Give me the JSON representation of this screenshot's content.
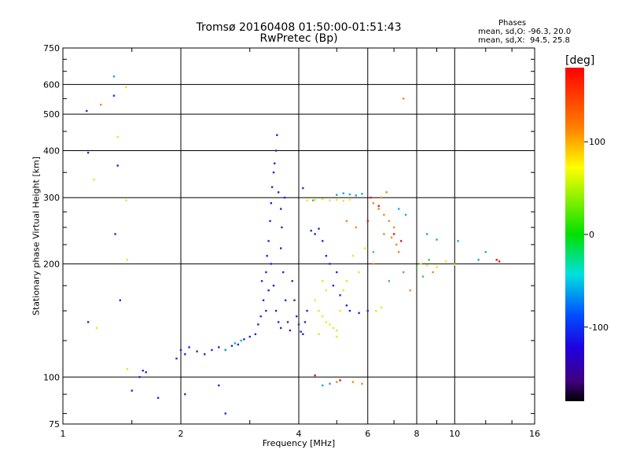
{
  "chart_data": {
    "type": "scatter",
    "title": "Tromsø 20160408 01:50:00-01:51:43",
    "subtitle": "RwPretec (Bp)",
    "xlabel": "Frequency [MHz]",
    "ylabel": "Stationary phase Virtual Height [km]",
    "x_scale": "log",
    "y_scale": "log",
    "xlim": [
      1,
      16
    ],
    "ylim": [
      75,
      750
    ],
    "x_ticks": [
      1,
      2,
      4,
      6,
      8,
      10,
      16
    ],
    "y_ticks": [
      75,
      100,
      200,
      300,
      400,
      500,
      600,
      750
    ],
    "grid": true,
    "legend_title": "Phases",
    "legend_lines": [
      "mean, sd,O: -96.3, 20.0",
      "mean, sd,X:  94.5, 25.8"
    ],
    "colorbar": {
      "label": "[deg]",
      "ticks": [
        100,
        0,
        -100
      ],
      "range": [
        -180,
        180
      ]
    },
    "series": [
      {
        "mode": "O",
        "color": "#1e2bd6",
        "points": [
          [
            1.15,
            510
          ],
          [
            1.16,
            395
          ],
          [
            1.16,
            140
          ],
          [
            1.35,
            560
          ],
          [
            1.36,
            240
          ],
          [
            1.38,
            365
          ],
          [
            1.4,
            160
          ],
          [
            1.5,
            92
          ],
          [
            1.57,
            100
          ],
          [
            1.6,
            104
          ],
          [
            1.63,
            103
          ],
          [
            1.75,
            88
          ],
          [
            1.95,
            112
          ],
          [
            2.0,
            118
          ],
          [
            2.05,
            115
          ],
          [
            2.1,
            120
          ],
          [
            2.2,
            117
          ],
          [
            2.3,
            115
          ],
          [
            2.4,
            118
          ],
          [
            2.5,
            120
          ],
          [
            2.6,
            118
          ],
          [
            2.7,
            121
          ],
          [
            2.8,
            122
          ],
          [
            2.9,
            126
          ],
          [
            3.0,
            128
          ],
          [
            3.1,
            130
          ],
          [
            3.15,
            138
          ],
          [
            3.2,
            145
          ],
          [
            3.22,
            180
          ],
          [
            3.25,
            160
          ],
          [
            3.3,
            190
          ],
          [
            3.32,
            210
          ],
          [
            3.35,
            230
          ],
          [
            3.38,
            260
          ],
          [
            3.4,
            290
          ],
          [
            3.42,
            320
          ],
          [
            3.45,
            350
          ],
          [
            3.47,
            370
          ],
          [
            3.5,
            400
          ],
          [
            3.52,
            440
          ],
          [
            3.3,
            150
          ],
          [
            3.35,
            170
          ],
          [
            3.4,
            200
          ],
          [
            3.45,
            175
          ],
          [
            3.5,
            150
          ],
          [
            3.55,
            140
          ],
          [
            3.6,
            135
          ],
          [
            3.6,
            220
          ],
          [
            3.65,
            190
          ],
          [
            3.7,
            160
          ],
          [
            3.75,
            140
          ],
          [
            3.8,
            133
          ],
          [
            3.85,
            180
          ],
          [
            3.9,
            160
          ],
          [
            3.95,
            145
          ],
          [
            4.0,
            138
          ],
          [
            4.05,
            132
          ],
          [
            4.1,
            130
          ],
          [
            4.15,
            140
          ],
          [
            4.2,
            150
          ],
          [
            3.55,
            310
          ],
          [
            3.6,
            280
          ],
          [
            3.62,
            250
          ],
          [
            3.68,
            300
          ],
          [
            4.1,
            318
          ],
          [
            4.3,
            245
          ],
          [
            4.4,
            240
          ],
          [
            4.5,
            248
          ],
          [
            4.6,
            230
          ],
          [
            4.7,
            210
          ],
          [
            4.8,
            200
          ],
          [
            4.9,
            175
          ],
          [
            5.0,
            190
          ],
          [
            5.1,
            165
          ],
          [
            5.3,
            155
          ],
          [
            5.4,
            150
          ],
          [
            5.7,
            148
          ],
          [
            6.0,
            150
          ],
          [
            2.05,
            90
          ],
          [
            2.5,
            95
          ],
          [
            2.6,
            80
          ]
        ]
      },
      {
        "mode": "O-cyan",
        "color": "#16a9e0",
        "points": [
          [
            1.35,
            630
          ],
          [
            2.6,
            118
          ],
          [
            2.75,
            123
          ],
          [
            2.85,
            125
          ],
          [
            5.0,
            305
          ],
          [
            5.2,
            308
          ],
          [
            5.4,
            306
          ],
          [
            5.6,
            304
          ],
          [
            5.8,
            307
          ],
          [
            4.6,
            95
          ],
          [
            4.8,
            96
          ],
          [
            7.2,
            280
          ],
          [
            7.5,
            270
          ],
          [
            8.5,
            240
          ],
          [
            9.0,
            232
          ],
          [
            10.2,
            230
          ],
          [
            11.5,
            205
          ],
          [
            12.0,
            215
          ]
        ]
      },
      {
        "mode": "X",
        "color": "#e8e81a",
        "points": [
          [
            1.2,
            335
          ],
          [
            1.22,
            135
          ],
          [
            1.38,
            435
          ],
          [
            1.45,
            590
          ],
          [
            1.45,
            295
          ],
          [
            1.46,
            205
          ],
          [
            1.46,
            105
          ],
          [
            4.2,
            295
          ],
          [
            4.4,
            296
          ],
          [
            4.6,
            297
          ],
          [
            4.8,
            295
          ],
          [
            5.0,
            296
          ],
          [
            5.2,
            294
          ],
          [
            5.4,
            296
          ],
          [
            4.4,
            160
          ],
          [
            4.5,
            150
          ],
          [
            4.6,
            145
          ],
          [
            4.7,
            140
          ],
          [
            4.8,
            138
          ],
          [
            4.9,
            135
          ],
          [
            5.0,
            133
          ],
          [
            5.1,
            150
          ],
          [
            5.2,
            170
          ],
          [
            5.3,
            180
          ],
          [
            5.5,
            210
          ],
          [
            5.7,
            190
          ],
          [
            5.9,
            220
          ],
          [
            4.6,
            180
          ],
          [
            4.7,
            170
          ],
          [
            4.5,
            130
          ],
          [
            5.0,
            128
          ],
          [
            6.3,
            150
          ],
          [
            6.5,
            153
          ],
          [
            8.2,
            200
          ],
          [
            8.5,
            198
          ],
          [
            9.0,
            196
          ],
          [
            9.5,
            203
          ],
          [
            10.0,
            199
          ]
        ]
      },
      {
        "mode": "X-orange",
        "color": "#f28a12",
        "points": [
          [
            1.25,
            530
          ],
          [
            7.4,
            550
          ],
          [
            6.2,
            290
          ],
          [
            6.4,
            280
          ],
          [
            6.6,
            270
          ],
          [
            6.8,
            260
          ],
          [
            7.0,
            250
          ],
          [
            6.6,
            240
          ],
          [
            6.9,
            235
          ],
          [
            7.1,
            225
          ],
          [
            6.5,
            300
          ],
          [
            6.7,
            310
          ],
          [
            5.0,
            97
          ],
          [
            5.5,
            97
          ],
          [
            5.8,
            96
          ],
          [
            6.2,
            200
          ],
          [
            7.2,
            215
          ],
          [
            7.7,
            170
          ],
          [
            8.8,
            190
          ],
          [
            5.3,
            260
          ],
          [
            5.6,
            250
          ]
        ]
      },
      {
        "mode": "X-red",
        "color": "#e01818",
        "points": [
          [
            4.4,
            101
          ],
          [
            5.1,
            98
          ],
          [
            6.1,
            300
          ],
          [
            6.4,
            285
          ],
          [
            7.3,
            230
          ],
          [
            6.0,
            260
          ],
          [
            7.0,
            240
          ],
          [
            12.8,
            205
          ],
          [
            13.0,
            203
          ]
        ]
      },
      {
        "mode": "X-green",
        "color": "#3ccc3c",
        "points": [
          [
            4.35,
            295
          ],
          [
            6.2,
            215
          ],
          [
            7.4,
            190
          ],
          [
            8.0,
            195
          ],
          [
            8.3,
            185
          ],
          [
            8.6,
            205
          ],
          [
            6.8,
            180
          ]
        ]
      }
    ]
  }
}
